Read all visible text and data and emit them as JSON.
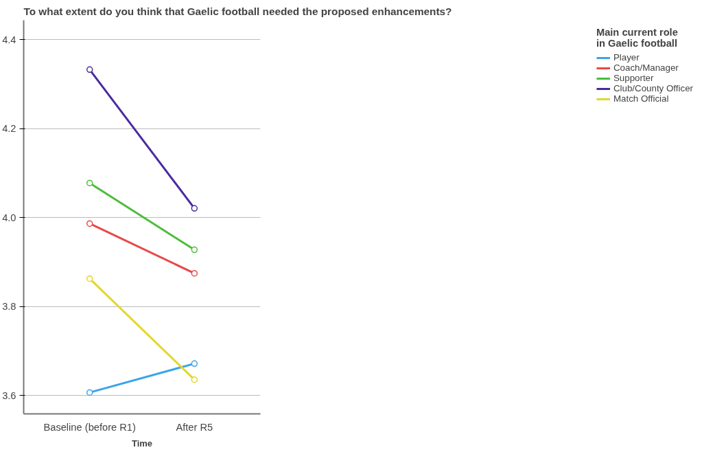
{
  "chart_data": {
    "type": "line",
    "title": "To what extent do you think that Gaelic football needed the proposed enhancements?",
    "xlabel": "Time",
    "legend_title": "Main current role\nin Gaelic football",
    "categories": [
      "Baseline (before R1)",
      "After R5"
    ],
    "series": [
      {
        "name": "Player",
        "color": "#3aa4e8",
        "values": [
          3.607,
          3.672
        ]
      },
      {
        "name": "Coach/Manager",
        "color": "#e8484a",
        "values": [
          3.987,
          3.875
        ]
      },
      {
        "name": "Supporter",
        "color": "#4cbd3a",
        "values": [
          4.078,
          3.928
        ]
      },
      {
        "name": "Club/County Officer",
        "color": "#4b2aa0",
        "values": [
          4.333,
          4.021
        ]
      },
      {
        "name": "Match Official",
        "color": "#e3d72a",
        "values": [
          3.863,
          3.636
        ]
      }
    ],
    "ylim": [
      3.559,
      4.444
    ],
    "yticks": [
      3.6,
      3.8,
      {
        "value": 4,
        "label": "4.0"
      },
      4.2,
      4.4
    ],
    "grid": "y",
    "legend": "right",
    "marker": "circle"
  }
}
